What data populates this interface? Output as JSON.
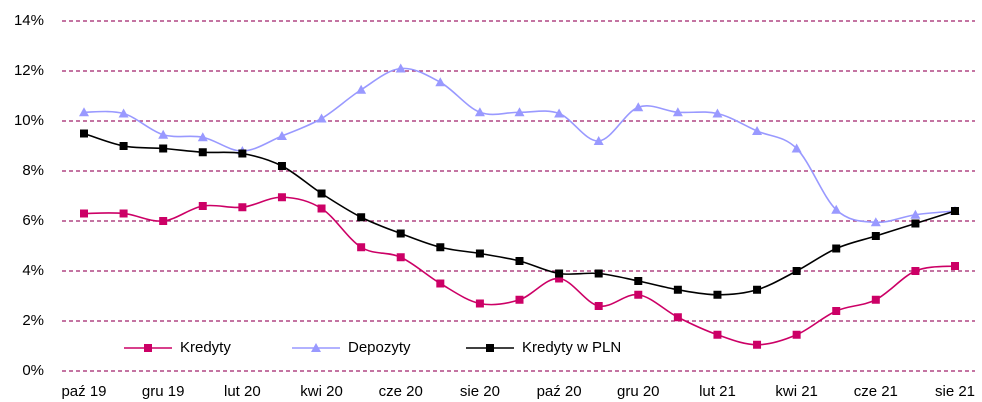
{
  "chart_data": {
    "type": "line",
    "categories": [
      "paź 19",
      null,
      "gru 19",
      null,
      "lut 20",
      null,
      "kwi 20",
      null,
      "cze 20",
      null,
      "sie 20",
      null,
      "paź 20",
      null,
      "gru 20",
      null,
      "lut 21",
      null,
      "kwi 21",
      null,
      "cze 21",
      null,
      "sie 21"
    ],
    "series": [
      {
        "name": "Kredyty",
        "color": "#cc0066",
        "marker": "square",
        "values": [
          6.3,
          6.3,
          6.0,
          6.6,
          6.55,
          6.95,
          6.5,
          4.95,
          4.55,
          3.5,
          2.7,
          2.85,
          3.7,
          2.6,
          3.05,
          2.15,
          1.45,
          1.05,
          1.45,
          2.4,
          2.85,
          4.0,
          4.2
        ]
      },
      {
        "name": "Depozyty",
        "color": "#9999ff",
        "marker": "triangle",
        "values": [
          10.35,
          10.3,
          9.45,
          9.35,
          8.8,
          9.4,
          10.1,
          11.25,
          12.1,
          11.55,
          10.35,
          10.35,
          10.3,
          9.2,
          10.55,
          10.35,
          10.3,
          9.6,
          8.9,
          6.45,
          5.95,
          6.25,
          6.4
        ]
      },
      {
        "name": "Kredyty w PLN",
        "color": "#000000",
        "marker": "square",
        "values": [
          9.5,
          9.0,
          8.9,
          8.75,
          8.7,
          8.2,
          7.1,
          6.15,
          5.5,
          4.95,
          4.7,
          4.4,
          3.9,
          3.9,
          3.6,
          3.25,
          3.05,
          3.25,
          4.0,
          4.9,
          5.4,
          5.9,
          6.4
        ]
      }
    ],
    "ylim": [
      0,
      14
    ],
    "yticks": [
      {
        "value": 0,
        "label": "0%"
      },
      {
        "value": 2,
        "label": "2%"
      },
      {
        "value": 4,
        "label": "4%"
      },
      {
        "value": 6,
        "label": "6%"
      },
      {
        "value": 8,
        "label": "8%"
      },
      {
        "value": 10,
        "label": "10%"
      },
      {
        "value": 12,
        "label": "12%"
      },
      {
        "value": 14,
        "label": "14%"
      }
    ],
    "grid": true,
    "grid_color": "#a0206b",
    "legend": "lower left"
  }
}
